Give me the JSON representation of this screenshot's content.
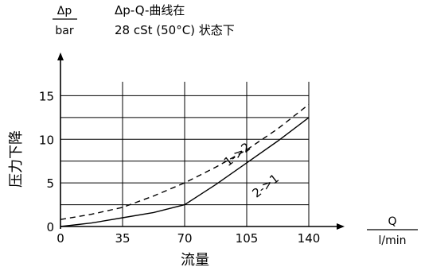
{
  "chart_data": {
    "type": "line",
    "title": "Δp-Q-曲线在",
    "subtitle": "28 cSt (50°C) 状态下",
    "ylabel": "压力下降",
    "xlabel": "流量",
    "y_unit_top": "Δp",
    "y_unit_bottom": "bar",
    "x_unit_top": "Q",
    "x_unit_bottom": "l/min",
    "xlim": [
      0,
      140
    ],
    "ylim": [
      0,
      17.5
    ],
    "grid": true,
    "xticks": [
      {
        "value": 0,
        "label": "0"
      },
      {
        "value": 35,
        "label": "35"
      },
      {
        "value": 70,
        "label": "70"
      },
      {
        "value": 105,
        "label": "105"
      },
      {
        "value": 140,
        "label": "140"
      }
    ],
    "yticks": [
      {
        "value": 0,
        "label": "0"
      },
      {
        "value": 5,
        "label": "5"
      },
      {
        "value": 10,
        "label": "10"
      },
      {
        "value": 15,
        "label": "15"
      }
    ],
    "hgrid": [
      0,
      2.5,
      5,
      7.5,
      10,
      12.5,
      15
    ],
    "series": [
      {
        "name": "1->2",
        "style": "dashed",
        "x": [
          0,
          17.5,
          35,
          52.5,
          70,
          87.5,
          105,
          122.5,
          140
        ],
        "y": [
          0.8,
          1.4,
          2.2,
          3.5,
          5.0,
          6.8,
          8.8,
          11.2,
          14.0
        ]
      },
      {
        "name": "2->1",
        "style": "solid",
        "x": [
          0,
          17.5,
          35,
          52.5,
          70,
          87.5,
          105,
          122.5,
          140
        ],
        "y": [
          0.0,
          0.4,
          1.0,
          1.6,
          2.5,
          4.8,
          7.3,
          9.8,
          12.5
        ]
      }
    ],
    "annotations": [
      {
        "text": "1->2",
        "x": 101,
        "y": 7.9
      },
      {
        "text": "2->1",
        "x": 117,
        "y": 4.3
      }
    ]
  }
}
